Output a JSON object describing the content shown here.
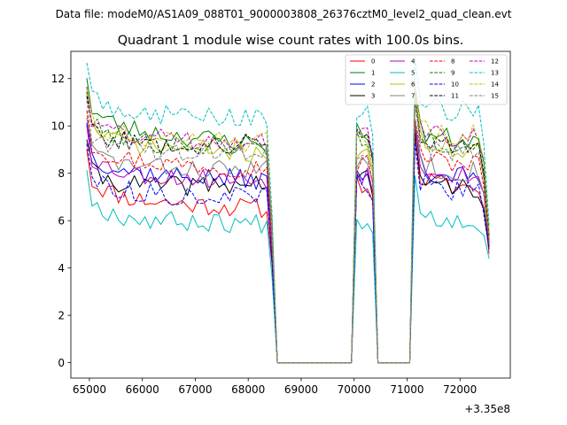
{
  "suptitle": "Data file: modeM0/AS1A09_088T01_9000003808_26376cztM0_level2_quad_clean.evt",
  "chart_data": {
    "type": "line",
    "title": "Quadrant 1 module wise count rates with 100.0s bins.",
    "xlabel": "",
    "ylabel": "",
    "x_offset_label": "+3.35e8",
    "xlim": [
      64650,
      72950
    ],
    "ylim": [
      -0.65,
      13.15
    ],
    "xticks": [
      65000,
      66000,
      67000,
      68000,
      69000,
      70000,
      71000,
      72000
    ],
    "xtick_labels": [
      "65000",
      "66000",
      "67000",
      "68000",
      "69000",
      "70000",
      "71000",
      "72000"
    ],
    "yticks": [
      0,
      2,
      4,
      6,
      8,
      10,
      12
    ],
    "ytick_labels": [
      "0",
      "2",
      "4",
      "6",
      "8",
      "10",
      "12"
    ],
    "legend_location": "top-right",
    "segments": [
      {
        "x_start": 64950,
        "n": 37
      },
      {
        "x_start": 68650,
        "n": 14
      },
      {
        "x_start": 70050,
        "n": 4
      },
      {
        "x_start": 70450,
        "n": 7
      },
      {
        "x_start": 71150,
        "n": 15
      }
    ],
    "series": [
      {
        "name": "0",
        "color": "#ff0000",
        "dash": "solid",
        "base": 6.9,
        "slope": -0.07,
        "burst": 7.6,
        "post": 7.4,
        "end": 4.6,
        "seed": 11
      },
      {
        "name": "1",
        "color": "#008000",
        "dash": "solid",
        "base": 9.9,
        "slope": -0.12,
        "burst": 9.8,
        "post": 9.4,
        "end": 5.3,
        "seed": 23
      },
      {
        "name": "2",
        "color": "#0000ff",
        "dash": "solid",
        "base": 8.0,
        "slope": -0.05,
        "burst": 7.9,
        "post": 7.9,
        "end": 5.0,
        "seed": 37
      },
      {
        "name": "3",
        "color": "#000000",
        "dash": "solid",
        "base": 7.3,
        "slope": 0.05,
        "burst": 7.8,
        "post": 7.4,
        "end": 4.9,
        "seed": 41
      },
      {
        "name": "4",
        "color": "#bf00bf",
        "dash": "solid",
        "base": 7.9,
        "slope": -0.03,
        "burst": 8.0,
        "post": 8.0,
        "end": 5.1,
        "seed": 53
      },
      {
        "name": "5",
        "color": "#00bfbf",
        "dash": "solid",
        "base": 6.0,
        "slope": -0.02,
        "burst": 6.1,
        "post": 6.0,
        "end": 4.4,
        "seed": 67
      },
      {
        "name": "6",
        "color": "#bfbf00",
        "dash": "solid",
        "base": 9.2,
        "slope": -0.06,
        "burst": 9.0,
        "post": 9.0,
        "end": 5.2,
        "seed": 71
      },
      {
        "name": "7",
        "color": "#808080",
        "dash": "solid",
        "base": 8.2,
        "slope": -0.01,
        "burst": 8.5,
        "post": 8.1,
        "end": 5.0,
        "seed": 83
      },
      {
        "name": "8",
        "color": "#ff0000",
        "dash": "dashed",
        "base": 8.5,
        "slope": -0.05,
        "burst": 8.4,
        "post": 8.4,
        "end": 5.1,
        "seed": 97
      },
      {
        "name": "9",
        "color": "#008000",
        "dash": "dashed",
        "base": 9.3,
        "slope": -0.04,
        "burst": 9.5,
        "post": 9.2,
        "end": 5.4,
        "seed": 101
      },
      {
        "name": "10",
        "color": "#0000ff",
        "dash": "dashed",
        "base": 7.1,
        "slope": -0.02,
        "burst": 7.6,
        "post": 7.2,
        "end": 4.8,
        "seed": 113
      },
      {
        "name": "11",
        "color": "#000000",
        "dash": "dashed",
        "base": 9.1,
        "slope": 0.03,
        "burst": 9.6,
        "post": 9.2,
        "end": 5.4,
        "seed": 127
      },
      {
        "name": "12",
        "color": "#bf00bf",
        "dash": "dashed",
        "base": 9.5,
        "slope": -0.02,
        "burst": 9.6,
        "post": 9.5,
        "end": 5.5,
        "seed": 131
      },
      {
        "name": "13",
        "color": "#00bfbf",
        "dash": "dashed",
        "base": 10.5,
        "slope": -0.03,
        "burst": 10.7,
        "post": 10.6,
        "end": 5.8,
        "seed": 149
      },
      {
        "name": "14",
        "color": "#bfbf00",
        "dash": "dashed",
        "base": 9.4,
        "slope": -0.02,
        "burst": 9.3,
        "post": 9.6,
        "end": 5.4,
        "seed": 151
      },
      {
        "name": "15",
        "color": "#808080",
        "dash": "dashed",
        "base": 8.9,
        "slope": 0.0,
        "burst": 9.0,
        "post": 8.9,
        "end": 5.2,
        "seed": 163
      }
    ]
  }
}
